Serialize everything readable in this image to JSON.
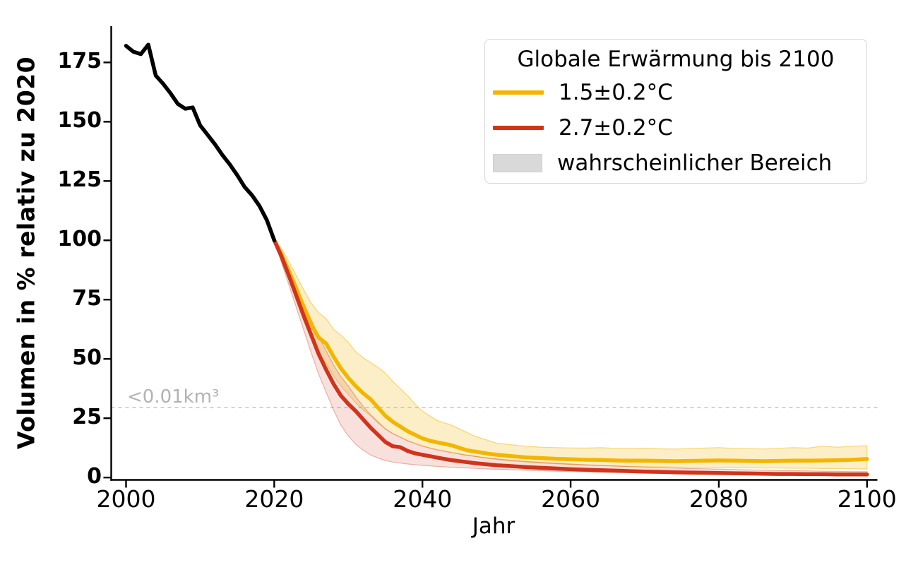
{
  "chart_data": {
    "type": "line",
    "title": "",
    "xlabel": "Jahr",
    "ylabel": "Volumen in % relativ zu 2020",
    "xlim": [
      1998.0,
      2101.4
    ],
    "ylim": [
      -1.0,
      190.3
    ],
    "grid": false,
    "xticks": [
      2000,
      2020,
      2040,
      2060,
      2080,
      2100
    ],
    "yticks": [
      0,
      25,
      50,
      75,
      100,
      125,
      150,
      175
    ],
    "threshold_line": {
      "label": "<0.01km³",
      "value_percent": 29.5,
      "style": "dashed",
      "color": "#c3c3c3",
      "label_color": "#b2b2b2"
    },
    "legend": {
      "title": "Globale Erwärmung bis 2100",
      "position": "upper right",
      "entries": [
        {
          "label": "1.5±0.2°C",
          "type": "line",
          "color": "#f2b600"
        },
        {
          "label": "2.7±0.2°C",
          "type": "line",
          "color": "#d0341b"
        },
        {
          "label": "wahrscheinlicher Bereich",
          "type": "patch",
          "color": "#d9d9d9"
        }
      ]
    },
    "series": [
      {
        "name": "historisch",
        "color": "#000000",
        "x": [
          2000,
          2001,
          2002,
          2003,
          2004,
          2005,
          2006,
          2007,
          2008,
          2009,
          2010,
          2011,
          2012,
          2013,
          2014,
          2015,
          2016,
          2017,
          2018,
          2019,
          2020
        ],
        "y": [
          182,
          179.5,
          178.5,
          182.5,
          169.5,
          166,
          162,
          157.5,
          155.5,
          156,
          148.5,
          144.5,
          140.5,
          136,
          132,
          127.5,
          122.5,
          119,
          114.5,
          108.5,
          100
        ]
      },
      {
        "name": "1.5±0.2°C",
        "color": "#f2b600",
        "band_fill": "rgba(242,182,0,0.22)",
        "band_edge": "rgba(242,182,0,0.5)",
        "x": [
          2020,
          2021,
          2022,
          2023,
          2024,
          2025,
          2026,
          2027,
          2028,
          2029,
          2030,
          2031,
          2032,
          2033,
          2034,
          2035,
          2036,
          2037,
          2038,
          2039,
          2040,
          2041,
          2042,
          2043,
          2044,
          2045,
          2046,
          2047,
          2048,
          2049,
          2050,
          2052,
          2054,
          2056,
          2058,
          2060,
          2062,
          2064,
          2066,
          2068,
          2070,
          2072,
          2074,
          2076,
          2078,
          2080,
          2082,
          2084,
          2086,
          2088,
          2090,
          2092,
          2094,
          2096,
          2098,
          2100
        ],
        "y": [
          100,
          94,
          87,
          79.5,
          71.5,
          64.5,
          59,
          56.5,
          51,
          46,
          42,
          38.5,
          35.5,
          33,
          29.5,
          26,
          23.5,
          21.5,
          19.5,
          18,
          16.5,
          15.5,
          14.8,
          14.2,
          13.5,
          12.5,
          11.5,
          11,
          10.5,
          10,
          9.6,
          9,
          8.5,
          8.2,
          7.9,
          7.7,
          7.5,
          7.4,
          7.2,
          7.1,
          7.1,
          7,
          6.9,
          7,
          7.1,
          7.2,
          7.1,
          7,
          6.9,
          7,
          7.1,
          7.1,
          7.2,
          7.3,
          7.5,
          7.8
        ],
        "band_upper": [
          100,
          96.5,
          91,
          85,
          79,
          73.5,
          69.5,
          67,
          62.5,
          60,
          57,
          53,
          50.5,
          48.5,
          46.5,
          44,
          40.5,
          37.5,
          34.5,
          31,
          28,
          26,
          24,
          23,
          22,
          20.5,
          19,
          17.5,
          16.5,
          15.5,
          14.5,
          13.8,
          13.2,
          12.8,
          12.6,
          12.5,
          12.4,
          12.6,
          12.3,
          12.2,
          12.4,
          12.1,
          12,
          12.2,
          12.4,
          12.6,
          12.3,
          12.2,
          12,
          12.3,
          12.6,
          12.4,
          13.2,
          12.8,
          13.2,
          13.4
        ],
        "band_lower": [
          100,
          91,
          83,
          74.5,
          66,
          58.5,
          52.5,
          48,
          43,
          38.5,
          35,
          31.5,
          28.5,
          26,
          23,
          20.5,
          18.5,
          17,
          15.5,
          14.5,
          13.5,
          12.5,
          11.8,
          11.2,
          10.6,
          10,
          9.4,
          8.9,
          8.4,
          8,
          7.6,
          7,
          6.5,
          6.1,
          5.8,
          5.5,
          5.2,
          5,
          4.8,
          4.7,
          4.6,
          4.5,
          4.4,
          4.3,
          4.3,
          4.2,
          4.1,
          4.1,
          4,
          4,
          3.9,
          3.9,
          3.8,
          3.8,
          3.7,
          3.6
        ]
      },
      {
        "name": "2.7±0.2°C",
        "color": "#d0341b",
        "band_fill": "rgba(208,52,27,0.15)",
        "band_edge": "rgba(208,52,27,0.35)",
        "x": [
          2020,
          2021,
          2022,
          2023,
          2024,
          2025,
          2026,
          2027,
          2028,
          2029,
          2030,
          2031,
          2032,
          2033,
          2034,
          2035,
          2036,
          2037,
          2038,
          2039,
          2040,
          2041,
          2042,
          2043,
          2044,
          2045,
          2046,
          2047,
          2048,
          2049,
          2050,
          2052,
          2054,
          2056,
          2058,
          2060,
          2062,
          2064,
          2066,
          2068,
          2070,
          2072,
          2074,
          2076,
          2078,
          2080,
          2082,
          2084,
          2086,
          2088,
          2090,
          2092,
          2094,
          2096,
          2098,
          2100
        ],
        "y": [
          100,
          93,
          85,
          76.5,
          68,
          60,
          52,
          45.5,
          39.5,
          34.5,
          31,
          28,
          24.5,
          21,
          18,
          15,
          13.2,
          12.8,
          11.2,
          10.2,
          9.6,
          9,
          8.4,
          7.8,
          7.3,
          6.9,
          6.5,
          6.1,
          5.8,
          5.5,
          5.2,
          4.8,
          4.4,
          4.1,
          3.8,
          3.5,
          3.3,
          3.1,
          2.9,
          2.7,
          2.5,
          2.4,
          2.2,
          2.1,
          2,
          1.9,
          1.8,
          1.7,
          1.6,
          1.5,
          1.5,
          1.4,
          1.4,
          1.3,
          1.3,
          1.3
        ],
        "band_upper": [
          100,
          95,
          88.5,
          81,
          73.5,
          66.5,
          59.5,
          53.5,
          47.5,
          42.5,
          38.5,
          34,
          30,
          26.5,
          23.5,
          20.5,
          18.5,
          17,
          15.5,
          14.2,
          13.2,
          12.4,
          11.6,
          11,
          10.4,
          9.9,
          9.4,
          9,
          8.6,
          8.2,
          7.9,
          7.3,
          6.8,
          6.4,
          6,
          5.7,
          5.4,
          5.1,
          4.9,
          4.6,
          4.4,
          4.2,
          4,
          3.8,
          3.7,
          3.5,
          3.4,
          3.2,
          3.1,
          3,
          2.9,
          2.8,
          2.7,
          2.6,
          2.5,
          2.5
        ],
        "band_lower": [
          100,
          90.5,
          81,
          71.5,
          62,
          52.5,
          43.5,
          36,
          28.5,
          22,
          17.5,
          14,
          11.5,
          9.5,
          8.2,
          7.2,
          6.5,
          6.1,
          5.7,
          5.4,
          5.1,
          4.9,
          4.7,
          4.5,
          4.3,
          4.2,
          4,
          3.9,
          3.7,
          3.6,
          3.5,
          3.3,
          3.1,
          2.9,
          2.7,
          2.5,
          2.4,
          2.2,
          2.1,
          2,
          1.9,
          1.8,
          1.7,
          1.6,
          1.5,
          1.4,
          1.3,
          1.2,
          1.1,
          1,
          1,
          0.9,
          0.8,
          0.8,
          0.7,
          0.7
        ]
      }
    ]
  }
}
